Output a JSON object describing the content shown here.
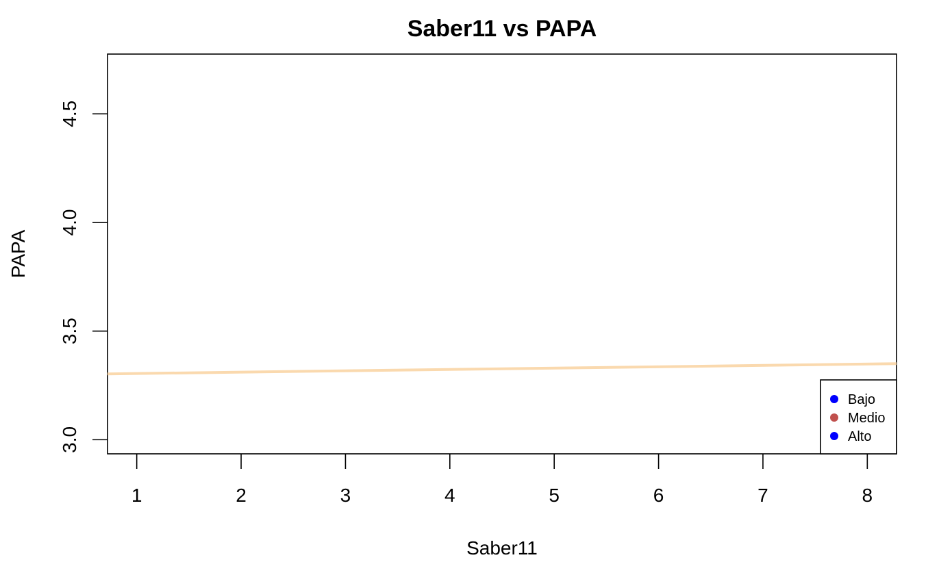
{
  "chart_data": {
    "type": "scatter",
    "title": "Saber11 vs PAPA",
    "xlabel": "Saber11",
    "ylabel": "PAPA",
    "xlim": [
      0.72,
      8.28
    ],
    "ylim": [
      2.935,
      4.775
    ],
    "x_ticks": [
      "1",
      "2",
      "3",
      "4",
      "5",
      "6",
      "7",
      "8"
    ],
    "y_ticks": [
      "3.0",
      "3.5",
      "4.0",
      "4.5"
    ],
    "grid": false,
    "series": [],
    "regression_line": {
      "x": [
        0.72,
        8.28
      ],
      "y": [
        3.303,
        3.35
      ],
      "color": "#FAD9AE"
    },
    "legend": {
      "position": "bottom-right",
      "entries": [
        {
          "label": "Bajo",
          "color": "#0000FF"
        },
        {
          "label": "Medio",
          "color": "#C0504D"
        },
        {
          "label": "Alto",
          "color": "#0000FF"
        }
      ]
    }
  }
}
